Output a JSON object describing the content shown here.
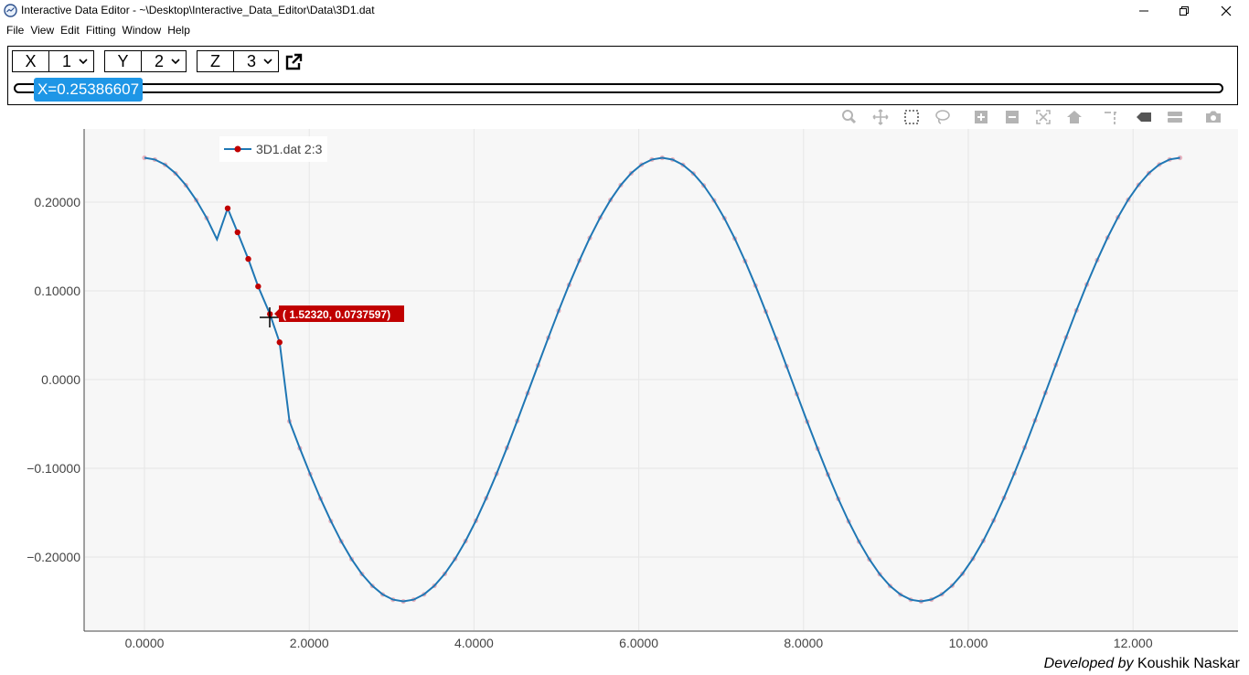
{
  "window": {
    "title": "Interactive Data Editor - ~\\Desktop\\Interactive_Data_Editor\\Data\\3D1.dat",
    "controls": [
      "minimize-icon",
      "restore-icon",
      "close-icon"
    ]
  },
  "menu": [
    "File",
    "View",
    "Edit",
    "Fitting",
    "Window",
    "Help"
  ],
  "axes": {
    "x": {
      "label": "X",
      "value": "1"
    },
    "y": {
      "label": "Y",
      "value": "2"
    },
    "z": {
      "label": "Z",
      "value": "3"
    }
  },
  "slider": {
    "label": "X=0.25386607"
  },
  "modebar_icons": [
    "zoom-icon",
    "pan-icon",
    "box-select-icon",
    "lasso-select-icon",
    "zoom-in-icon",
    "zoom-out-icon",
    "autoscale-icon",
    "reset-axes-icon",
    "spike-lines-icon",
    "hover-closest-icon",
    "hover-compare-icon",
    "camera-icon"
  ],
  "tooltip": {
    "text": "( 1.52320,  0.0737597)"
  },
  "footer": {
    "prefix": "Developed by",
    "author": "Koushik Naskar"
  },
  "colors": {
    "line": "#1f77b4",
    "selected": "#c00000",
    "marker": "#e8b4c0",
    "slider": "#1e96e6"
  },
  "chart_data": {
    "type": "line",
    "series": [
      {
        "name": "3D1.dat 2:3",
        "function": "0.25*cos(x) for x in 0..12.57 step 0.1257, with edited points near x=0.88..1.64",
        "edited_points": [
          {
            "x": 0.88,
            "y": 0.158
          },
          {
            "x": 1.01,
            "y": 0.193
          },
          {
            "x": 1.13,
            "y": 0.166
          },
          {
            "x": 1.26,
            "y": 0.136
          },
          {
            "x": 1.38,
            "y": 0.105
          },
          {
            "x": 1.5232,
            "y": 0.0738
          },
          {
            "x": 1.64,
            "y": 0.042
          }
        ]
      }
    ],
    "x_ticks": [
      "0.0000",
      "2.0000",
      "4.0000",
      "6.0000",
      "8.0000",
      "10.000",
      "12.000"
    ],
    "y_ticks": [
      "0.20000",
      "0.10000",
      "0.0000",
      "−0.10000",
      "−0.20000"
    ],
    "xlim": [
      -0.75,
      13.3
    ],
    "ylim": [
      -0.283,
      0.283
    ],
    "grid": true,
    "legend": "top-left"
  }
}
